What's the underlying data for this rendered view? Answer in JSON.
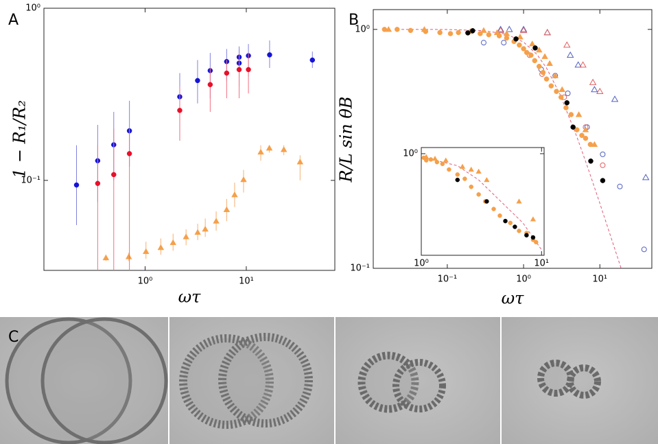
{
  "chart_data": [
    {
      "type": "scatter",
      "panel_label": "A",
      "xlabel": "ωτ",
      "ylabel": "1 − R₁/R₂",
      "xscale": "log",
      "yscale": "log",
      "xlim": [
        0.1,
        75
      ],
      "ylim": [
        0.03,
        1
      ],
      "xticks": [
        {
          "value": 1,
          "label": "10⁰"
        },
        {
          "value": 10,
          "label": "10¹"
        }
      ],
      "yticks": [
        {
          "value": 0.1,
          "label": "10⁻¹"
        },
        {
          "value": 1,
          "label": "10⁰"
        }
      ],
      "series": [
        {
          "marker": "triangle",
          "filled": true,
          "color": "#f5a04a",
          "errcolor": "#f5b070",
          "x": [
            0.41,
            0.69,
            1.02,
            1.43,
            1.89,
            2.54,
            3.31,
            3.93,
            5.04,
            6.4,
            7.67,
            9.4,
            13.9,
            16.9,
            23.5,
            34
          ],
          "y": [
            0.0355,
            0.036,
            0.0386,
            0.0407,
            0.0435,
            0.047,
            0.0499,
            0.0521,
            0.058,
            0.0676,
            0.0825,
            0.101,
            0.146,
            0.154,
            0.151,
            0.128
          ],
          "ylow": [
            0.034,
            0.034,
            0.035,
            0.037,
            0.039,
            0.042,
            0.045,
            0.047,
            0.051,
            0.058,
            0.07,
            0.085,
            0.13,
            0.145,
            0.14,
            0.1
          ],
          "yhigh": [
            0.037,
            0.038,
            0.044,
            0.046,
            0.049,
            0.052,
            0.056,
            0.06,
            0.066,
            0.078,
            0.097,
            0.115,
            0.16,
            0.16,
            0.16,
            0.14
          ]
        },
        {
          "marker": "circle",
          "filled": true,
          "color": "#1414d8",
          "errcolor": "#8080e0",
          "x": [
            0.21,
            0.34,
            0.49,
            0.7,
            2.2,
            3.3,
            4.4,
            6.4,
            8.5,
            8.5,
            10.5,
            17,
            45
          ],
          "y": [
            0.094,
            0.13,
            0.161,
            0.194,
            0.306,
            0.38,
            0.434,
            0.49,
            0.48,
            0.52,
            0.53,
            0.536,
            0.5
          ],
          "ylow": [
            0.055,
            0.075,
            0.1,
            0.12,
            0.17,
            0.28,
            0.3,
            0.38,
            0.35,
            0.4,
            0.4,
            0.45,
            0.45
          ],
          "yhigh": [
            0.16,
            0.21,
            0.25,
            0.29,
            0.42,
            0.5,
            0.55,
            0.58,
            0.58,
            0.6,
            0.62,
            0.65,
            0.56
          ]
        },
        {
          "marker": "circle",
          "filled": true,
          "color": "#e8102a",
          "errcolor": "#f07080",
          "x": [
            0.34,
            0.49,
            0.7,
            2.2,
            4.4,
            6.4,
            8.5,
            10.5
          ],
          "y": [
            0.096,
            0.108,
            0.143,
            0.255,
            0.36,
            0.42,
            0.44,
            0.44
          ],
          "ylow": [
            0.03,
            0.03,
            0.03,
            0.17,
            0.25,
            0.3,
            0.3,
            0.32
          ],
          "yhigh": [
            0.16,
            0.2,
            0.2,
            0.35,
            0.45,
            0.5,
            0.55,
            0.55
          ]
        }
      ]
    },
    {
      "type": "scatter",
      "panel_label": "B",
      "xlabel": "ωτ",
      "ylabel": "R/L sin θB",
      "xscale": "log",
      "yscale": "log",
      "xlim": [
        0.0107,
        48
      ],
      "ylim": [
        0.1,
        1.21
      ],
      "xticks": [
        {
          "value": 0.1,
          "label": "10⁻¹"
        },
        {
          "value": 1,
          "label": "10⁰"
        },
        {
          "value": 10,
          "label": "10¹"
        }
      ],
      "yticks": [
        {
          "value": 0.1,
          "label": "10⁻¹"
        },
        {
          "value": 1,
          "label": "10⁰"
        }
      ],
      "series": [
        {
          "mode": "line",
          "dashed": true,
          "color": "#e05a78",
          "x": [
            0.025,
            0.1,
            0.3,
            0.6,
            1,
            1.5,
            2,
            3,
            5,
            7,
            10,
            15,
            19
          ],
          "y": [
            1.0,
            0.999,
            0.988,
            0.954,
            0.885,
            0.785,
            0.689,
            0.535,
            0.355,
            0.262,
            0.187,
            0.126,
            0.1
          ]
        },
        {
          "marker": "triangle",
          "filled": false,
          "color": "#5060c0",
          "x": [
            0.5,
            0.65,
            1.0,
            2.05,
            4.1,
            5.2,
            8.5,
            15.7,
            40
          ],
          "y": [
            1.0,
            1.0,
            1.0,
            0.97,
            0.78,
            0.71,
            0.56,
            0.51,
            0.24
          ]
        },
        {
          "marker": "triangle",
          "filled": false,
          "color": "#e06060",
          "x": [
            0.5,
            1.0,
            2.05,
            3.7,
            6.0,
            8.1,
            10
          ],
          "y": [
            0.99,
            0.99,
            0.97,
            0.86,
            0.71,
            0.6,
            0.55
          ]
        },
        {
          "marker": "circle",
          "filled": false,
          "color": "#5060c0",
          "x": [
            0.3,
            0.55,
            1.7,
            2.6,
            3.8,
            6.8,
            10.9,
            18.3,
            38
          ],
          "y": [
            0.88,
            0.88,
            0.68,
            0.64,
            0.54,
            0.39,
            0.3,
            0.22,
            0.12
          ]
        },
        {
          "marker": "circle",
          "filled": false,
          "color": "#e06060",
          "x": [
            1.2,
            1.75,
            3.4,
            6.5,
            10.9
          ],
          "y": [
            0.78,
            0.65,
            0.52,
            0.39,
            0.27
          ]
        },
        {
          "marker": "circle",
          "filled": true,
          "color": "#f5a04a",
          "x": [
            0.015,
            0.022,
            0.033,
            0.052,
            0.08,
            0.11,
            0.14,
            0.27,
            0.35,
            0.48,
            0.6,
            0.75,
            0.88,
            1.0,
            1.1,
            1.25,
            1.4,
            1.6,
            1.8,
            2.0,
            2.3,
            2.7,
            3.1,
            3.6,
            4.2,
            5.0,
            5.8,
            6.5,
            7.5
          ],
          "y": [
            1.0,
            1.0,
            0.99,
            0.98,
            0.97,
            0.96,
            0.97,
            0.96,
            0.95,
            0.94,
            0.92,
            0.89,
            0.86,
            0.83,
            0.8,
            0.78,
            0.74,
            0.7,
            0.66,
            0.62,
            0.58,
            0.55,
            0.52,
            0.47,
            0.44,
            0.38,
            0.36,
            0.35,
            0.33
          ]
        },
        {
          "marker": "triangle",
          "filled": true,
          "color": "#f5a04a",
          "x": [
            0.017,
            0.05,
            0.2,
            0.3,
            0.45,
            0.6,
            0.9,
            1.3,
            1.6,
            1.9,
            2.2,
            2.6,
            3.2,
            5.3,
            6.5,
            8.5
          ],
          "y": [
            1.0,
            1.0,
            0.98,
            0.99,
            0.97,
            0.96,
            0.93,
            0.87,
            0.82,
            0.77,
            0.72,
            0.64,
            0.56,
            0.44,
            0.38,
            0.33
          ]
        },
        {
          "marker": "circle",
          "filled": true,
          "color": "#000000",
          "x": [
            0.186,
            0.215,
            0.796,
            1.42,
            3.7,
            4.45,
            7.6,
            10.9
          ],
          "y": [
            0.967,
            0.987,
            0.912,
            0.836,
            0.493,
            0.39,
            0.281,
            0.233
          ]
        }
      ]
    },
    {
      "type": "scatter",
      "xscale": "log",
      "yscale": "log",
      "xlim": [
        1,
        10.5
      ],
      "ylim": [
        0.28,
        1.08
      ],
      "xticks": [
        {
          "value": 1,
          "label": "10⁰"
        },
        {
          "value": 10,
          "label": "10¹"
        }
      ],
      "yticks": [
        {
          "value": 1,
          "label": "10⁰"
        }
      ],
      "series": [
        {
          "mode": "line",
          "dashed": true,
          "color": "#e05a78",
          "x": [
            1,
            2,
            3,
            5,
            7,
            10
          ],
          "y": [
            0.96,
            0.86,
            0.72,
            0.52,
            0.42,
            0.3
          ]
        },
        {
          "marker": "circle",
          "filled": true,
          "color": "#f5a04a",
          "x": [
            1.05,
            1.1,
            1.2,
            1.35,
            1.5,
            1.7,
            2,
            2.3,
            2.6,
            3.0,
            3.4,
            4,
            4.5,
            5.5,
            6.5,
            7.5,
            8.5,
            9
          ],
          "y": [
            0.95,
            0.92,
            0.93,
            0.9,
            0.88,
            0.82,
            0.77,
            0.73,
            0.66,
            0.6,
            0.55,
            0.5,
            0.46,
            0.42,
            0.38,
            0.37,
            0.34,
            0.33
          ]
        },
        {
          "marker": "triangle",
          "filled": true,
          "color": "#f5a04a",
          "x": [
            1.1,
            1.3,
            1.6,
            2.2,
            2.6,
            3.0,
            3.5,
            6.5,
            8.5
          ],
          "y": [
            0.96,
            0.94,
            0.92,
            0.85,
            0.82,
            0.8,
            0.72,
            0.55,
            0.44
          ]
        },
        {
          "marker": "circle",
          "filled": true,
          "color": "#000000",
          "x": [
            2.0,
            3.5,
            5,
            6,
            7.5,
            8.5
          ],
          "y": [
            0.72,
            0.55,
            0.43,
            0.4,
            0.36,
            0.35
          ]
        }
      ]
    }
  ],
  "image_panel": {
    "label": "C"
  }
}
